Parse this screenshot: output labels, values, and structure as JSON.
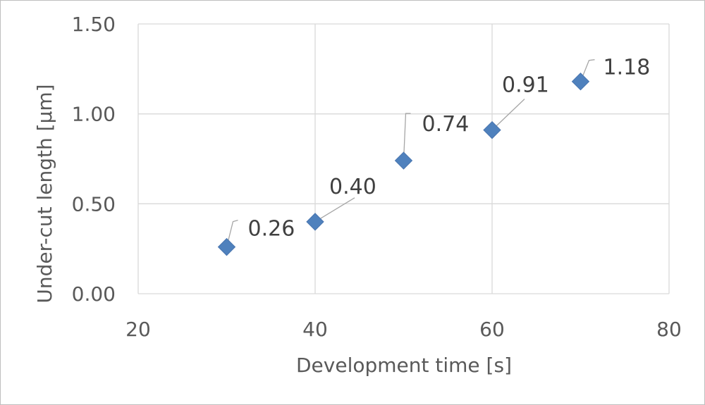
{
  "chart_data": {
    "type": "scatter",
    "xlabel": "Development time [s]",
    "ylabel": "Under-cut length  [µm]",
    "xlim": [
      20,
      80
    ],
    "ylim": [
      0.0,
      1.5
    ],
    "x_ticks": [
      "20",
      "40",
      "60",
      "80"
    ],
    "y_ticks": [
      "0.00",
      "0.50",
      "1.00",
      "1.50"
    ],
    "grid": true,
    "legend": "none",
    "marker": "diamond",
    "color": "#4f81bd",
    "points": [
      {
        "x": 30,
        "y": 0.26,
        "label": "0.26"
      },
      {
        "x": 40,
        "y": 0.4,
        "label": "0.40"
      },
      {
        "x": 50,
        "y": 0.74,
        "label": "0.74"
      },
      {
        "x": 60,
        "y": 0.91,
        "label": "0.91"
      },
      {
        "x": 70,
        "y": 1.18,
        "label": "1.18"
      }
    ]
  }
}
